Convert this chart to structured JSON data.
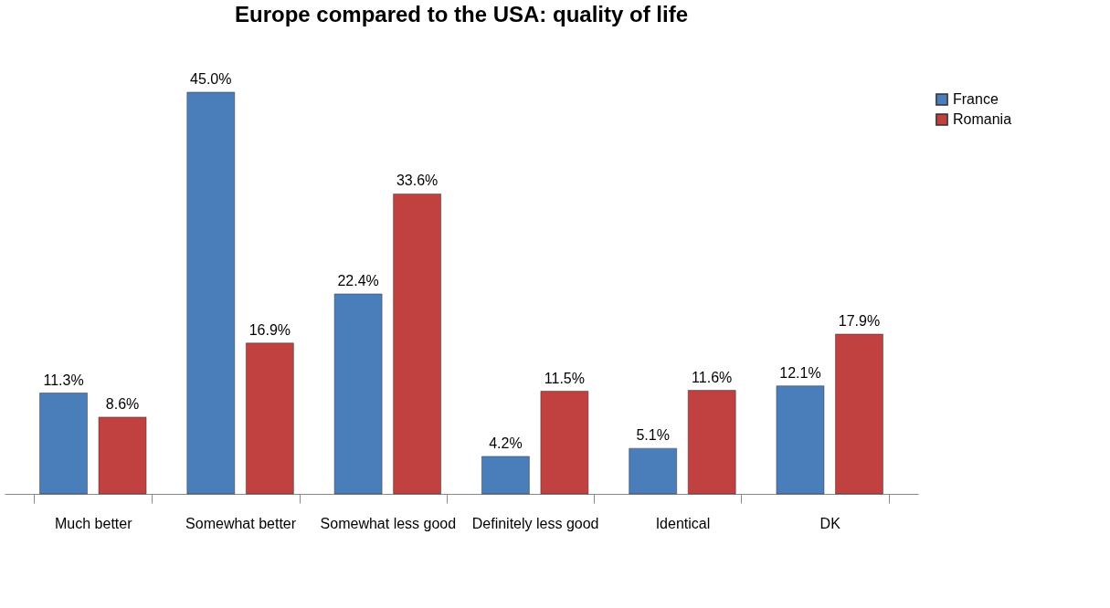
{
  "chart_data": {
    "type": "bar",
    "title": "Europe compared to the USA: quality of life",
    "categories": [
      "Much better",
      "Somewhat better",
      "Somewhat less good",
      "Definitely less good",
      "Identical",
      "DK"
    ],
    "series": [
      {
        "name": "France",
        "color": "#4a7ebb",
        "values": [
          11.3,
          45.0,
          22.4,
          4.2,
          5.1,
          12.1
        ],
        "value_labels": [
          "11.3%",
          "45.0%",
          "22.4%",
          "4.2%",
          "5.1%",
          "12.1%"
        ]
      },
      {
        "name": "Romania",
        "color": "#c0413f",
        "values": [
          8.6,
          16.9,
          33.6,
          11.5,
          11.6,
          17.9
        ],
        "value_labels": [
          "8.6%",
          "16.9%",
          "33.6%",
          "11.5%",
          "11.6%",
          "17.9%"
        ]
      }
    ],
    "legend": "right",
    "grid": false
  }
}
